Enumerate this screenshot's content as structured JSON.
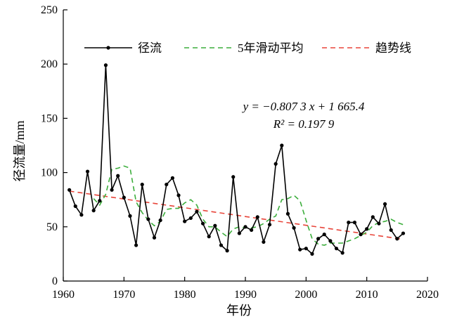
{
  "chart_data": {
    "type": "line",
    "title": "",
    "xlabel": "年份",
    "ylabel": "径流量/mm",
    "xlim": [
      1960,
      2020
    ],
    "ylim": [
      0,
      250
    ],
    "xticks": [
      1960,
      1970,
      1980,
      1990,
      2000,
      2010,
      2020
    ],
    "yticks": [
      0,
      50,
      100,
      150,
      200,
      250
    ],
    "legend_position": "top",
    "series": [
      {
        "name": "径流",
        "style": "solid-marker",
        "color": "#000000",
        "x": [
          1961,
          1962,
          1963,
          1964,
          1965,
          1966,
          1967,
          1968,
          1969,
          1970,
          1971,
          1972,
          1973,
          1974,
          1975,
          1976,
          1977,
          1978,
          1979,
          1980,
          1981,
          1982,
          1983,
          1984,
          1985,
          1986,
          1987,
          1988,
          1989,
          1990,
          1991,
          1992,
          1993,
          1994,
          1995,
          1996,
          1997,
          1998,
          1999,
          2000,
          2001,
          2002,
          2003,
          2004,
          2005,
          2006,
          2007,
          2008,
          2009,
          2010,
          2011,
          2012,
          2013,
          2014,
          2015,
          2016
        ],
        "y": [
          84,
          69,
          61,
          101,
          65,
          74,
          199,
          84,
          97,
          77,
          60,
          33,
          89,
          57,
          40,
          56,
          89,
          95,
          79,
          55,
          58,
          64,
          53,
          41,
          51,
          33,
          28,
          96,
          44,
          50,
          47,
          59,
          36,
          52,
          108,
          125,
          62,
          49,
          29,
          30,
          25,
          39,
          43,
          37,
          30,
          26,
          54,
          54,
          43,
          48,
          59,
          53,
          71,
          47,
          39,
          44
        ]
      },
      {
        "name": "5年滑动平均",
        "style": "dashed",
        "color": "#3cae3c",
        "x": [
          1965,
          1966,
          1967,
          1968,
          1969,
          1970,
          1971,
          1972,
          1973,
          1974,
          1975,
          1976,
          1977,
          1978,
          1979,
          1980,
          1981,
          1982,
          1983,
          1984,
          1985,
          1986,
          1987,
          1988,
          1989,
          1990,
          1991,
          1992,
          1993,
          1994,
          1995,
          1996,
          1997,
          1998,
          1999,
          2000,
          2001,
          2002,
          2003,
          2004,
          2005,
          2006,
          2007,
          2008,
          2009,
          2010,
          2011,
          2012,
          2013,
          2014,
          2015,
          2016
        ],
        "y": [
          76,
          70,
          80,
          103,
          104,
          106,
          104,
          73,
          63,
          56,
          51,
          55,
          66,
          67,
          67,
          72,
          75,
          70,
          57,
          50,
          50,
          45,
          41,
          48,
          50,
          49,
          49,
          50,
          53,
          57,
          60,
          75,
          76,
          79,
          74,
          56,
          39,
          34,
          33,
          35,
          35,
          35,
          37,
          39,
          42,
          45,
          51,
          54,
          55,
          57,
          54,
          52
        ]
      },
      {
        "name": "趋势线",
        "style": "dashed",
        "color": "#e8453a",
        "x": [
          1961,
          2016
        ],
        "y": [
          82.9,
          38.5
        ]
      }
    ],
    "annotations": {
      "equation": "y = −0.807 3 x + 1 665.4",
      "r_squared": "R² = 0.197 9"
    }
  }
}
